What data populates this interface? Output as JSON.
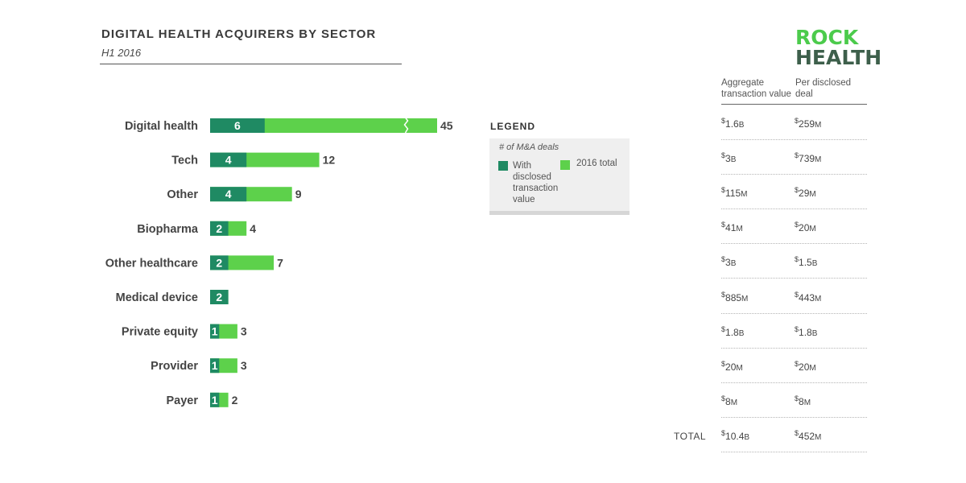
{
  "header": {
    "title": "DIGITAL HEALTH ACQUIRERS BY SECTOR",
    "subtitle": "H1 2016"
  },
  "logo": {
    "line1": "ROCK",
    "line2": "HEALTH"
  },
  "legend": {
    "title": "LEGEND",
    "subtitle": "# of M&A deals",
    "dark_label": "With disclosed transaction value",
    "light_label": "2016 total"
  },
  "colors": {
    "disclosed": "#1f8a63",
    "total": "#5dd14b",
    "logo_green": "#4ccb4c",
    "logo_dark": "#3d5f4b"
  },
  "table": {
    "col1_header": "Aggregate transaction value",
    "col2_header": "Per disclosed deal",
    "total_label": "TOTAL",
    "rows": [
      {
        "agg_num": "1.6",
        "agg_unit": "B",
        "per_num": "259",
        "per_unit": "M"
      },
      {
        "agg_num": "3",
        "agg_unit": "B",
        "per_num": "739",
        "per_unit": "M"
      },
      {
        "agg_num": "115",
        "agg_unit": "M",
        "per_num": "29",
        "per_unit": "M"
      },
      {
        "agg_num": "41",
        "agg_unit": "M",
        "per_num": "20",
        "per_unit": "M"
      },
      {
        "agg_num": "3",
        "agg_unit": "B",
        "per_num": "1.5",
        "per_unit": "B"
      },
      {
        "agg_num": "885",
        "agg_unit": "M",
        "per_num": "443",
        "per_unit": "M"
      },
      {
        "agg_num": "1.8",
        "agg_unit": "B",
        "per_num": "1.8",
        "per_unit": "B"
      },
      {
        "agg_num": "20",
        "agg_unit": "M",
        "per_num": "20",
        "per_unit": "M"
      },
      {
        "agg_num": "8",
        "agg_unit": "M",
        "per_num": "8",
        "per_unit": "M"
      }
    ],
    "total": {
      "agg_num": "10.4",
      "agg_unit": "B",
      "per_num": "452",
      "per_unit": "M"
    }
  },
  "chart_data": {
    "type": "bar",
    "orientation": "horizontal",
    "categories": [
      "Digital health",
      "Tech",
      "Other",
      "Biopharma",
      "Other healthcare",
      "Medical device",
      "Private equity",
      "Provider",
      "Payer"
    ],
    "series": [
      {
        "name": "With disclosed transaction value",
        "values": [
          6,
          4,
          4,
          2,
          2,
          2,
          1,
          1,
          1
        ]
      },
      {
        "name": "2016 total",
        "values": [
          45,
          12,
          9,
          4,
          7,
          2,
          3,
          3,
          2
        ]
      }
    ],
    "axis_break": {
      "category": "Digital health",
      "note": "bar truncated"
    },
    "grid": false,
    "legend_position": "right"
  }
}
